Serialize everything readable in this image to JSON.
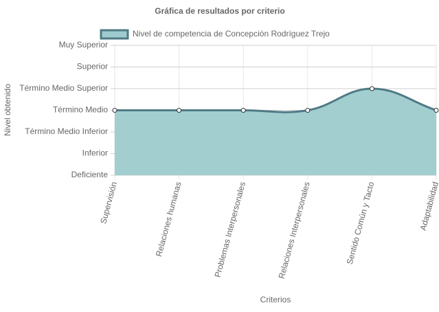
{
  "chart_data": {
    "type": "area",
    "title": "Gráfica de resultados por criterio",
    "x_label": "Criterios",
    "y_label": "Nivel obtenido",
    "categories": [
      "Supervisión",
      "Relaciones humanas",
      "Problemas Interpersonales",
      "Relaciones Interpersonales",
      "Sentido Común y Tacto",
      "Adaptabilidad"
    ],
    "series": [
      {
        "name": "Nivel de competencia de Concepción Rodríguez Trejo",
        "color": "#4f7a85",
        "fill": "#9ecbce",
        "values": [
          3,
          3,
          3,
          3,
          4,
          3
        ]
      }
    ],
    "ylim": [
      0,
      6
    ],
    "yticks": [
      {
        "value": 0,
        "label": "Deficiente"
      },
      {
        "value": 1,
        "label": "Inferior"
      },
      {
        "value": 2,
        "label": "Término Medio Inferior"
      },
      {
        "value": 3,
        "label": "Término Medio"
      },
      {
        "value": 4,
        "label": "Término Medio Superior"
      },
      {
        "value": 5,
        "label": "Superior"
      },
      {
        "value": 6,
        "label": "Muy Superior"
      }
    ],
    "grid": true,
    "legend": "top"
  }
}
